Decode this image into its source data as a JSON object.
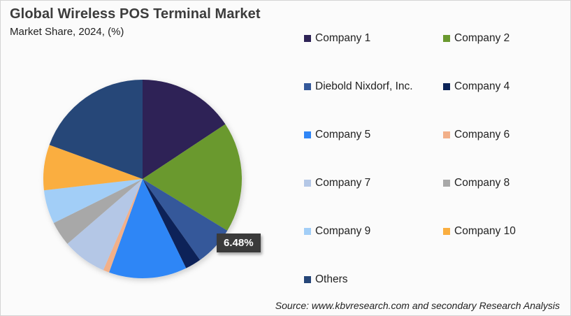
{
  "title": "Global Wireless POS Terminal Market",
  "subtitle": "Market Share, 2024, (%)",
  "source": "Source: www.kbvresearch.com and secondary Research Analysis",
  "chart_data": {
    "type": "pie",
    "title": "Global Wireless POS Terminal Market",
    "subtitle": "Market Share, 2024, (%)",
    "start_angle_deg": 0,
    "direction": "clockwise",
    "legend_position": "right",
    "categories": [
      "Company 1",
      "Company 2",
      "Diebold Nixdorf, Inc.",
      "Company 4",
      "Company 5",
      "Company 6",
      "Company 7",
      "Company 8",
      "Company 9",
      "Company 10",
      "Others"
    ],
    "values": [
      15.7,
      18.0,
      6.48,
      2.6,
      12.7,
      1.0,
      7.2,
      4.0,
      5.5,
      7.4,
      19.42
    ],
    "colors": [
      "#2e2356",
      "#6a992f",
      "#34589a",
      "#0c2458",
      "#2f86f6",
      "#f2b089",
      "#b4c7e6",
      "#a8a8a8",
      "#a2cef7",
      "#faae40",
      "#264678"
    ],
    "annotations": [
      {
        "category": "Diebold Nixdorf, Inc.",
        "label": "6.48%"
      }
    ]
  },
  "data_label": "6.48%",
  "legend": [
    {
      "label": "Company 1",
      "color": "#2e2356"
    },
    {
      "label": "Company 2",
      "color": "#6a992f"
    },
    {
      "label": "Diebold Nixdorf, Inc.",
      "color": "#34589a"
    },
    {
      "label": "Company 4",
      "color": "#0c2458"
    },
    {
      "label": "Company 5",
      "color": "#2f86f6"
    },
    {
      "label": "Company 6",
      "color": "#f2b089"
    },
    {
      "label": "Company 7",
      "color": "#b4c7e6"
    },
    {
      "label": "Company 8",
      "color": "#a8a8a8"
    },
    {
      "label": "Company 9",
      "color": "#a2cef7"
    },
    {
      "label": "Company 10",
      "color": "#faae40"
    },
    {
      "label": "Others",
      "color": "#264678"
    }
  ]
}
